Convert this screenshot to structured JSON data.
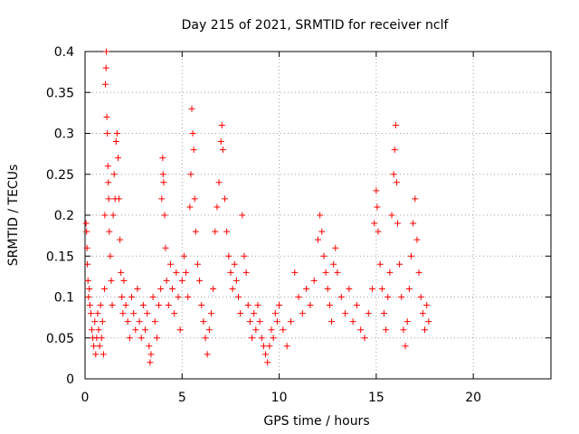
{
  "chart_data": {
    "type": "scatter",
    "title": "Day 215 of 2021, SRMTID for receiver nclf",
    "xlabel": "GPS time / hours",
    "ylabel": "SRMTID / TECUs",
    "xlim": [
      0,
      24
    ],
    "ylim": [
      0,
      0.4
    ],
    "x_ticks": [
      0,
      5,
      10,
      15,
      20
    ],
    "y_ticks": [
      0,
      0.05,
      0.1,
      0.15,
      0.2,
      0.25,
      0.3,
      0.35,
      0.4
    ],
    "x_tick_labels": [
      "0",
      "5",
      "10",
      "15",
      "20"
    ],
    "y_tick_labels": [
      "0",
      "0.05",
      "0.1",
      "0.15",
      "0.2",
      "0.25",
      "0.3",
      "0.35",
      "0.4"
    ],
    "grid": true,
    "legend": "none",
    "marker": "+",
    "color": "#ff0000",
    "series": [
      {
        "points": [
          [
            0.05,
            0.19
          ],
          [
            0.08,
            0.18
          ],
          [
            0.1,
            0.16
          ],
          [
            0.12,
            0.14
          ],
          [
            0.15,
            0.12
          ],
          [
            0.18,
            0.1
          ],
          [
            0.22,
            0.11
          ],
          [
            0.25,
            0.09
          ],
          [
            0.3,
            0.08
          ],
          [
            0.35,
            0.06
          ],
          [
            0.4,
            0.05
          ],
          [
            0.45,
            0.04
          ],
          [
            0.5,
            0.07
          ],
          [
            0.55,
            0.03
          ],
          [
            0.6,
            0.05
          ],
          [
            0.65,
            0.08
          ],
          [
            0.7,
            0.06
          ],
          [
            0.75,
            0.04
          ],
          [
            0.8,
            0.09
          ],
          [
            0.85,
            0.05
          ],
          [
            0.9,
            0.07
          ],
          [
            0.95,
            0.03
          ],
          [
            1.0,
            0.11
          ],
          [
            1.02,
            0.2
          ],
          [
            1.05,
            0.36
          ],
          [
            1.08,
            0.38
          ],
          [
            1.1,
            0.4
          ],
          [
            1.12,
            0.32
          ],
          [
            1.15,
            0.3
          ],
          [
            1.18,
            0.26
          ],
          [
            1.2,
            0.24
          ],
          [
            1.22,
            0.22
          ],
          [
            1.25,
            0.18
          ],
          [
            1.3,
            0.15
          ],
          [
            1.35,
            0.12
          ],
          [
            1.4,
            0.09
          ],
          [
            1.45,
            0.2
          ],
          [
            1.5,
            0.25
          ],
          [
            1.55,
            0.22
          ],
          [
            1.6,
            0.29
          ],
          [
            1.65,
            0.3
          ],
          [
            1.7,
            0.27
          ],
          [
            1.75,
            0.22
          ],
          [
            1.8,
            0.17
          ],
          [
            1.85,
            0.13
          ],
          [
            1.9,
            0.1
          ],
          [
            1.95,
            0.08
          ],
          [
            2.0,
            0.12
          ],
          [
            2.1,
            0.09
          ],
          [
            2.2,
            0.07
          ],
          [
            2.3,
            0.05
          ],
          [
            2.4,
            0.1
          ],
          [
            2.5,
            0.08
          ],
          [
            2.6,
            0.06
          ],
          [
            2.7,
            0.11
          ],
          [
            2.8,
            0.07
          ],
          [
            2.9,
            0.05
          ],
          [
            3.0,
            0.09
          ],
          [
            3.1,
            0.06
          ],
          [
            3.2,
            0.08
          ],
          [
            3.3,
            0.04
          ],
          [
            3.35,
            0.02
          ],
          [
            3.4,
            0.03
          ],
          [
            3.5,
            0.1
          ],
          [
            3.6,
            0.07
          ],
          [
            3.7,
            0.05
          ],
          [
            3.8,
            0.09
          ],
          [
            3.9,
            0.11
          ],
          [
            3.95,
            0.22
          ],
          [
            4.0,
            0.27
          ],
          [
            4.02,
            0.25
          ],
          [
            4.05,
            0.24
          ],
          [
            4.1,
            0.2
          ],
          [
            4.15,
            0.16
          ],
          [
            4.2,
            0.12
          ],
          [
            4.3,
            0.09
          ],
          [
            4.4,
            0.14
          ],
          [
            4.5,
            0.11
          ],
          [
            4.6,
            0.08
          ],
          [
            4.7,
            0.13
          ],
          [
            4.8,
            0.1
          ],
          [
            4.9,
            0.06
          ],
          [
            5.0,
            0.12
          ],
          [
            5.1,
            0.15
          ],
          [
            5.2,
            0.13
          ],
          [
            5.3,
            0.1
          ],
          [
            5.4,
            0.21
          ],
          [
            5.45,
            0.25
          ],
          [
            5.5,
            0.33
          ],
          [
            5.55,
            0.3
          ],
          [
            5.6,
            0.28
          ],
          [
            5.65,
            0.22
          ],
          [
            5.7,
            0.18
          ],
          [
            5.8,
            0.14
          ],
          [
            5.9,
            0.12
          ],
          [
            6.0,
            0.09
          ],
          [
            6.1,
            0.07
          ],
          [
            6.2,
            0.05
          ],
          [
            6.3,
            0.03
          ],
          [
            6.4,
            0.06
          ],
          [
            6.5,
            0.08
          ],
          [
            6.6,
            0.11
          ],
          [
            6.7,
            0.18
          ],
          [
            6.8,
            0.21
          ],
          [
            6.9,
            0.24
          ],
          [
            7.0,
            0.29
          ],
          [
            7.05,
            0.31
          ],
          [
            7.1,
            0.28
          ],
          [
            7.2,
            0.22
          ],
          [
            7.3,
            0.18
          ],
          [
            7.4,
            0.15
          ],
          [
            7.5,
            0.13
          ],
          [
            7.6,
            0.11
          ],
          [
            7.7,
            0.14
          ],
          [
            7.8,
            0.12
          ],
          [
            7.9,
            0.1
          ],
          [
            8.0,
            0.08
          ],
          [
            8.1,
            0.2
          ],
          [
            8.2,
            0.15
          ],
          [
            8.3,
            0.13
          ],
          [
            8.4,
            0.09
          ],
          [
            8.5,
            0.07
          ],
          [
            8.6,
            0.05
          ],
          [
            8.7,
            0.08
          ],
          [
            8.8,
            0.06
          ],
          [
            8.9,
            0.09
          ],
          [
            9.0,
            0.07
          ],
          [
            9.1,
            0.05
          ],
          [
            9.2,
            0.04
          ],
          [
            9.3,
            0.03
          ],
          [
            9.4,
            0.02
          ],
          [
            9.5,
            0.04
          ],
          [
            9.6,
            0.06
          ],
          [
            9.7,
            0.05
          ],
          [
            9.8,
            0.08
          ],
          [
            9.9,
            0.07
          ],
          [
            10.0,
            0.09
          ],
          [
            10.2,
            0.06
          ],
          [
            10.4,
            0.04
          ],
          [
            10.6,
            0.07
          ],
          [
            10.8,
            0.13
          ],
          [
            11.0,
            0.1
          ],
          [
            11.2,
            0.08
          ],
          [
            11.4,
            0.11
          ],
          [
            11.6,
            0.09
          ],
          [
            11.8,
            0.12
          ],
          [
            12.0,
            0.17
          ],
          [
            12.1,
            0.2
          ],
          [
            12.2,
            0.18
          ],
          [
            12.3,
            0.15
          ],
          [
            12.4,
            0.13
          ],
          [
            12.5,
            0.11
          ],
          [
            12.6,
            0.09
          ],
          [
            12.7,
            0.07
          ],
          [
            12.8,
            0.14
          ],
          [
            12.9,
            0.16
          ],
          [
            13.0,
            0.13
          ],
          [
            13.2,
            0.1
          ],
          [
            13.4,
            0.08
          ],
          [
            13.6,
            0.11
          ],
          [
            13.8,
            0.07
          ],
          [
            14.0,
            0.09
          ],
          [
            14.2,
            0.06
          ],
          [
            14.4,
            0.05
          ],
          [
            14.6,
            0.08
          ],
          [
            14.8,
            0.11
          ],
          [
            14.9,
            0.19
          ],
          [
            15.0,
            0.23
          ],
          [
            15.05,
            0.21
          ],
          [
            15.1,
            0.18
          ],
          [
            15.2,
            0.14
          ],
          [
            15.3,
            0.11
          ],
          [
            15.4,
            0.08
          ],
          [
            15.5,
            0.06
          ],
          [
            15.6,
            0.1
          ],
          [
            15.7,
            0.13
          ],
          [
            15.8,
            0.2
          ],
          [
            15.9,
            0.25
          ],
          [
            15.95,
            0.28
          ],
          [
            16.0,
            0.31
          ],
          [
            16.05,
            0.24
          ],
          [
            16.1,
            0.19
          ],
          [
            16.2,
            0.14
          ],
          [
            16.3,
            0.1
          ],
          [
            16.4,
            0.06
          ],
          [
            16.5,
            0.04
          ],
          [
            16.6,
            0.07
          ],
          [
            16.7,
            0.11
          ],
          [
            16.8,
            0.15
          ],
          [
            16.9,
            0.19
          ],
          [
            17.0,
            0.22
          ],
          [
            17.1,
            0.17
          ],
          [
            17.2,
            0.13
          ],
          [
            17.3,
            0.1
          ],
          [
            17.4,
            0.08
          ],
          [
            17.5,
            0.06
          ],
          [
            17.6,
            0.09
          ],
          [
            17.7,
            0.07
          ]
        ]
      }
    ]
  }
}
